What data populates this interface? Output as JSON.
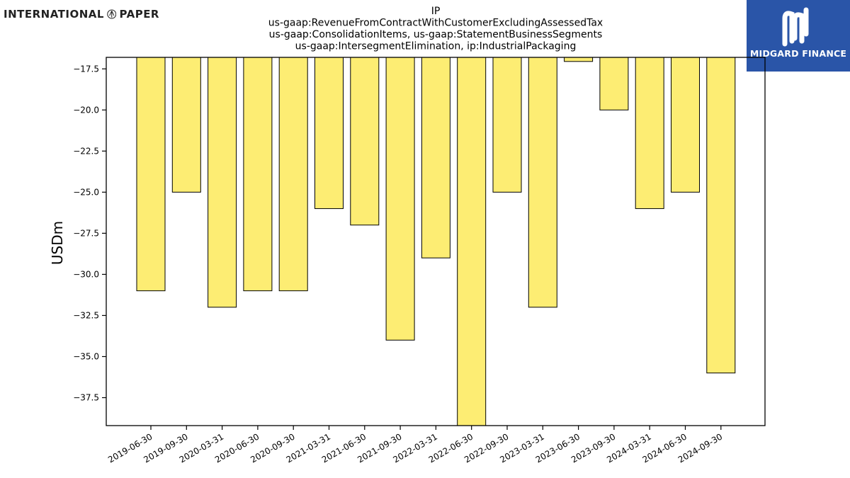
{
  "logo": {
    "left_word": "INTERNATIONAL",
    "right_word": "PAPER",
    "icon": "international-paper-logo-icon"
  },
  "watermark": {
    "name": "MIDGARD FINANCE",
    "icon": "midgard-logo-icon",
    "background": "#2a55a8"
  },
  "chart_data": {
    "type": "bar",
    "title_lines": [
      "IP",
      "us-gaap:RevenueFromContractWithCustomerExcludingAssessedTax",
      "us-gaap:ConsolidationItems, us-gaap:StatementBusinessSegments",
      "us-gaap:IntersegmentElimination, ip:IndustrialPackaging"
    ],
    "xlabel": "",
    "ylabel": "USDm",
    "categories": [
      "2019-06-30",
      "2019-09-30",
      "2020-03-31",
      "2020-06-30",
      "2020-09-30",
      "2021-03-31",
      "2021-06-30",
      "2021-09-30",
      "2022-03-31",
      "2022-06-30",
      "2022-09-30",
      "2023-03-31",
      "2023-06-30",
      "2023-09-30",
      "2024-03-31",
      "2024-06-30",
      "2024-09-30"
    ],
    "values": [
      -31,
      -25,
      -32,
      -31,
      -31,
      -26,
      -27,
      -34,
      -29,
      -39.2,
      -25,
      -32,
      -17.05,
      -20,
      -26,
      -25,
      -36
    ],
    "ylim": [
      -39.2,
      -16.8
    ],
    "yticks": [
      -17.5,
      -20.0,
      -22.5,
      -25.0,
      -27.5,
      -30.0,
      -32.5,
      -35.0,
      -37.5
    ],
    "bar_color": "#fded73",
    "bar_edge_color": "#000000",
    "grid": false,
    "legend": "none"
  }
}
